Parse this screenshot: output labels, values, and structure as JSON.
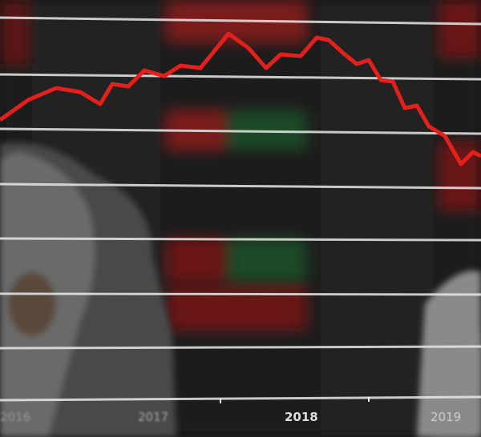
{
  "x_axis_labels": [
    "2016",
    "2017",
    "2018",
    "2019"
  ],
  "colors": {
    "trend_line": "#e3201b",
    "grid_lines": "#e8e8e8",
    "background": "#151515",
    "board_red": "#7a1a1a",
    "board_green": "#1f4a25"
  }
}
